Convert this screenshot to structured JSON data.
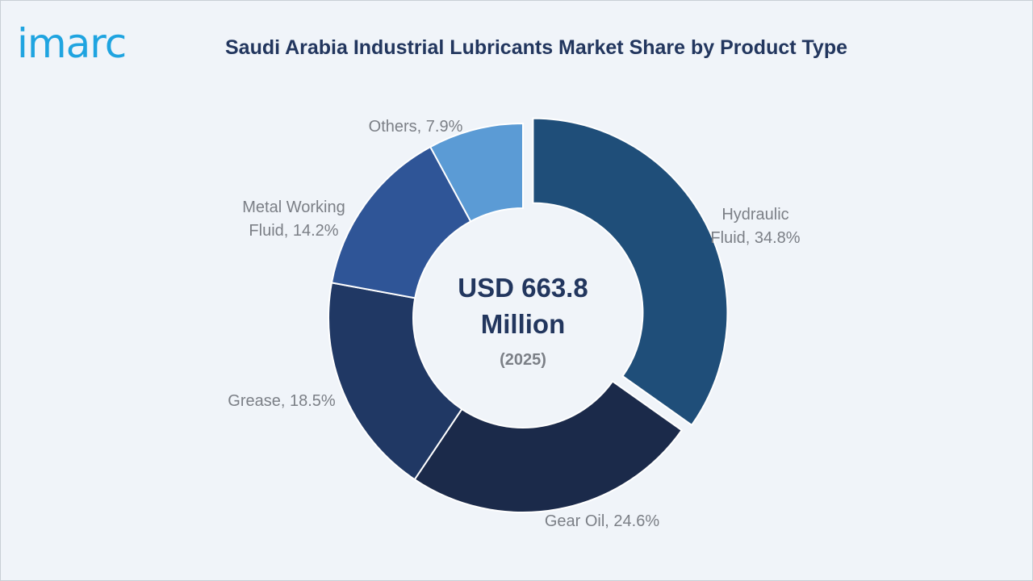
{
  "brand": {
    "logo_text": "imarc",
    "logo_color": "#1fa4e0"
  },
  "chart_data": {
    "type": "pie",
    "title": "Saudi Arabia Industrial Lubricants Market Share by Product Type",
    "center_value": "USD 663.8",
    "center_unit": "Million",
    "center_year": "(2025)",
    "slices": [
      {
        "name": "Hydraulic Fluid",
        "value": 34.8,
        "color": "#1f4e79",
        "label_lines": [
          "Hydraulic",
          "Fluid, 34.8%"
        ],
        "exploded": true
      },
      {
        "name": "Gear Oil",
        "value": 24.6,
        "color": "#1b2a4a",
        "label_lines": [
          "Gear Oil, 24.6%"
        ]
      },
      {
        "name": "Grease",
        "value": 18.5,
        "color": "#203864",
        "label_lines": [
          "Grease, 18.5%"
        ]
      },
      {
        "name": "Metal Working Fluid",
        "value": 14.2,
        "color": "#2f5597",
        "label_lines": [
          "Metal Working",
          "Fluid, 14.2%"
        ]
      },
      {
        "name": "Others",
        "value": 7.9,
        "color": "#5b9bd5",
        "label_lines": [
          "Others, 7.9%"
        ]
      }
    ]
  }
}
